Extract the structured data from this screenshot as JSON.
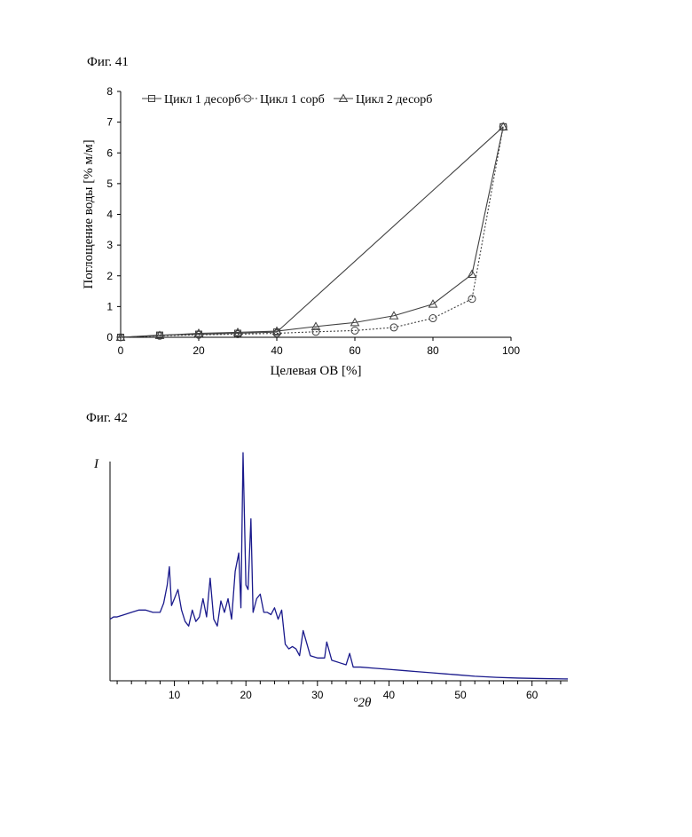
{
  "figures": {
    "fig41_label": "Фиг. 41",
    "fig42_label": "Фиг. 42"
  },
  "chart_data": [
    {
      "type": "line",
      "xlabel": "Целевая ОВ [%]",
      "ylabel": "Поглощение воды [% м/м]",
      "xlim": [
        0,
        100
      ],
      "ylim": [
        0,
        8
      ],
      "xticks": [
        0,
        20,
        40,
        60,
        80,
        100
      ],
      "yticks": [
        0,
        1,
        2,
        3,
        4,
        5,
        6,
        7,
        8
      ],
      "grid": false,
      "legend_position": "top",
      "series": [
        {
          "name": "Цикл 1 десорб",
          "marker": "square",
          "line": "solid",
          "x": [
            0,
            10,
            20,
            30,
            40,
            98
          ],
          "y": [
            0,
            0.07,
            0.1,
            0.13,
            0.17,
            6.85
          ]
        },
        {
          "name": "Цикл 1 сорб",
          "marker": "circle",
          "line": "dotted",
          "x": [
            0,
            10,
            20,
            30,
            40,
            50,
            60,
            70,
            80,
            90,
            98
          ],
          "y": [
            0,
            0.05,
            0.08,
            0.1,
            0.13,
            0.18,
            0.22,
            0.32,
            0.62,
            1.25,
            6.85
          ]
        },
        {
          "name": "Цикл 2 десорб",
          "marker": "triangle",
          "line": "solid",
          "x": [
            0,
            10,
            20,
            30,
            40,
            50,
            60,
            70,
            80,
            90,
            98
          ],
          "y": [
            0,
            0.06,
            0.13,
            0.16,
            0.2,
            0.35,
            0.48,
            0.7,
            1.08,
            2.05,
            6.85
          ]
        }
      ],
      "colors": {
        "lines": "#404040"
      }
    },
    {
      "type": "line",
      "ylabel": "I",
      "xlabel": "°2θ",
      "xlim": [
        1,
        65
      ],
      "xticks": [
        10,
        20,
        30,
        40,
        50,
        60
      ],
      "grid": false,
      "series": [
        {
          "x": [
            1.0,
            1.5,
            2.0,
            3.0,
            4.0,
            5.0,
            6.0,
            7.0,
            8.0,
            8.5,
            9.0,
            9.3,
            9.6,
            10.0,
            10.5,
            11.0,
            11.5,
            12.0,
            12.5,
            13.0,
            13.5,
            14.0,
            14.5,
            15.0,
            15.5,
            16.0,
            16.5,
            17.0,
            17.5,
            18.0,
            18.5,
            19.0,
            19.3,
            19.6,
            20.0,
            20.3,
            20.7,
            21.0,
            21.5,
            22.0,
            22.5,
            23.0,
            23.5,
            24.0,
            24.5,
            25.0,
            25.5,
            26.0,
            26.5,
            27.0,
            27.5,
            28.0,
            29.0,
            30.0,
            31.0,
            31.3,
            32.0,
            33.0,
            34.0,
            34.5,
            35.0,
            36.0,
            38.0,
            40.0,
            42.0,
            44.0,
            46.0,
            48.0,
            50.0,
            52.0,
            55.0,
            58.0,
            61.0,
            65.0
          ],
          "y": [
            0.27,
            0.28,
            0.28,
            0.29,
            0.3,
            0.31,
            0.31,
            0.3,
            0.3,
            0.34,
            0.42,
            0.5,
            0.33,
            0.36,
            0.4,
            0.31,
            0.26,
            0.24,
            0.31,
            0.26,
            0.28,
            0.36,
            0.28,
            0.45,
            0.27,
            0.24,
            0.35,
            0.3,
            0.36,
            0.27,
            0.48,
            0.56,
            0.32,
            1.0,
            0.42,
            0.4,
            0.71,
            0.3,
            0.36,
            0.38,
            0.3,
            0.3,
            0.29,
            0.32,
            0.27,
            0.31,
            0.16,
            0.14,
            0.15,
            0.14,
            0.11,
            0.22,
            0.11,
            0.1,
            0.1,
            0.17,
            0.09,
            0.08,
            0.07,
            0.12,
            0.06,
            0.06,
            0.055,
            0.05,
            0.045,
            0.04,
            0.035,
            0.03,
            0.025,
            0.02,
            0.015,
            0.012,
            0.01,
            0.008
          ]
        }
      ],
      "colors": {
        "line": "#1a1a8c"
      }
    }
  ]
}
